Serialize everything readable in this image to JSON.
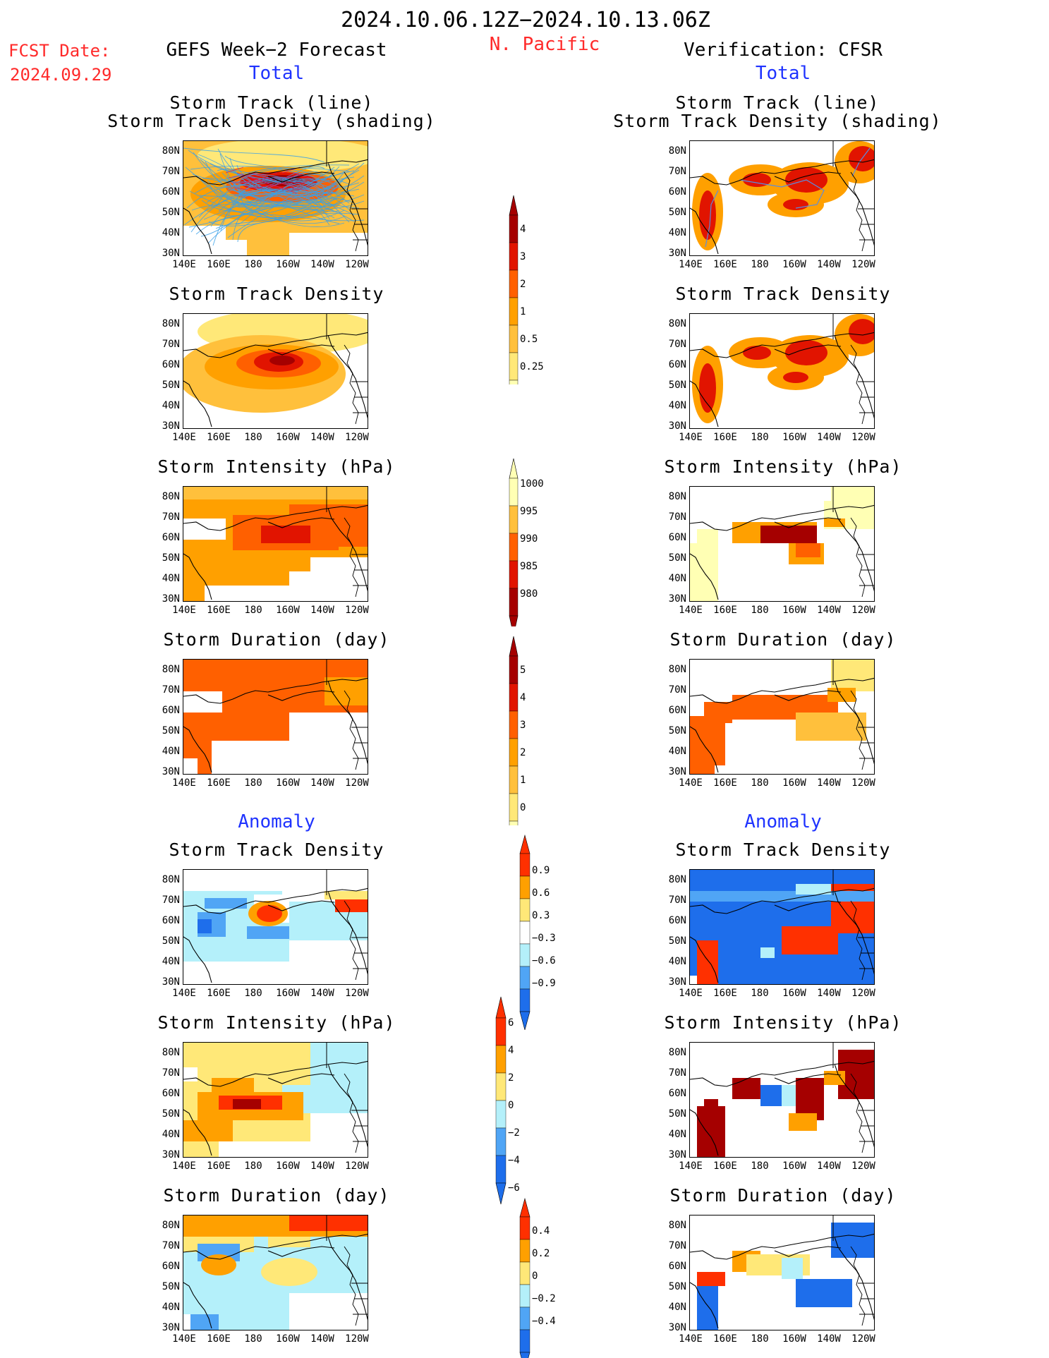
{
  "header": {
    "dates": "2024.10.06.12Z−2024.10.13.06Z",
    "region": "N. Pacific",
    "fcst_label": "FCST Date:",
    "fcst_date": "2024.09.29",
    "left_title": "GEFS Week−2 Forecast",
    "right_title": "Verification: CFSR",
    "total_label": "Total",
    "anomaly_label": "Anomaly"
  },
  "axes": {
    "lat_ticks": [
      "80N",
      "70N",
      "60N",
      "50N",
      "40N",
      "30N"
    ],
    "lon_ticks": [
      "140E",
      "160E",
      "180",
      "160W",
      "140W",
      "120W"
    ]
  },
  "panels": {
    "track_line_1": "Storm Track (line)",
    "track_line_2": "Storm Track Density (shading)",
    "density": "Storm Track Density",
    "intensity": "Storm Intensity (hPa)",
    "duration": "Storm Duration (day)"
  },
  "colorbars": {
    "density": [
      "4",
      "3",
      "2",
      "1",
      "0.5",
      "0.25"
    ],
    "intensity": [
      "1000",
      "995",
      "990",
      "985",
      "980"
    ],
    "duration": [
      "5",
      "4",
      "3",
      "2",
      "1",
      "0"
    ],
    "anom_density": [
      "0.9",
      "0.6",
      "0.3",
      "−0.3",
      "−0.6",
      "−0.9"
    ],
    "anom_intensity": [
      "6",
      "4",
      "2",
      "0",
      "−2",
      "−4",
      "−6"
    ],
    "anom_duration": [
      "0.4",
      "0.2",
      "0",
      "−0.2",
      "−0.4"
    ]
  },
  "colors": {
    "seq": [
      "#ffffb4",
      "#ffe878",
      "#ffc03c",
      "#ffa000",
      "#ff6000",
      "#e11400",
      "#a50000"
    ],
    "div_warm": [
      "#ffe878",
      "#ffa000",
      "#ff3000"
    ],
    "div_cool": [
      "#b4f0fa",
      "#50a5f5",
      "#1e6eeb"
    ]
  }
}
